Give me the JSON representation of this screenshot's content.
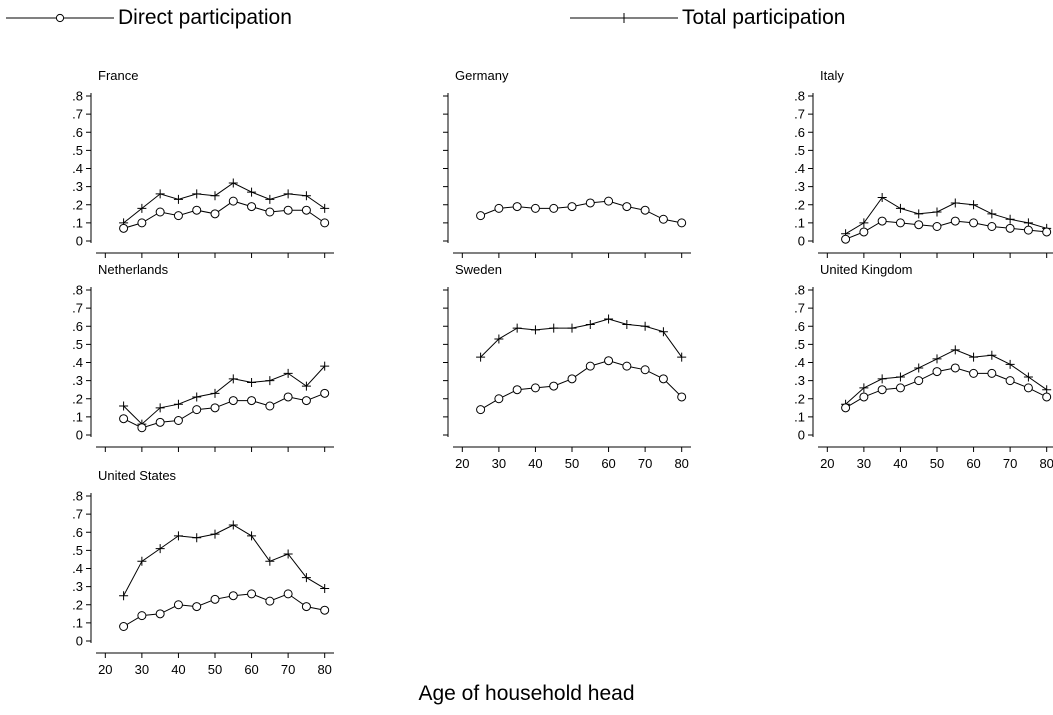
{
  "legend": {
    "direct_label": "Direct participation",
    "total_label": "Total participation"
  },
  "xlabel": "Age of household head",
  "chart_data": {
    "type": "line",
    "xlabel": "Age of household head",
    "x": [
      25,
      30,
      35,
      40,
      45,
      50,
      55,
      60,
      65,
      70,
      75,
      80
    ],
    "xticks": [
      20,
      30,
      40,
      50,
      60,
      70,
      80
    ],
    "xlim": [
      18,
      82
    ],
    "ylim": [
      0,
      0.8
    ],
    "yticks": [
      0,
      0.1,
      0.2,
      0.3,
      0.4,
      0.5,
      0.6,
      0.7,
      0.8
    ],
    "ytick_labels": [
      "0",
      ".1",
      ".2",
      ".3",
      ".4",
      ".5",
      ".6",
      ".7",
      ".8"
    ],
    "grid": false,
    "legend_position": "top",
    "series_names": [
      "Direct participation",
      "Total participation"
    ],
    "panels": [
      {
        "title": "France",
        "direct": [
          0.07,
          0.1,
          0.16,
          0.14,
          0.17,
          0.15,
          0.22,
          0.19,
          0.16,
          0.17,
          0.17,
          0.1
        ],
        "total": [
          0.1,
          0.18,
          0.26,
          0.23,
          0.26,
          0.25,
          0.32,
          0.27,
          0.23,
          0.26,
          0.25,
          0.18
        ]
      },
      {
        "title": "Germany",
        "direct": [
          0.14,
          0.18,
          0.19,
          0.18,
          0.18,
          0.19,
          0.21,
          0.22,
          0.19,
          0.17,
          0.12,
          0.1
        ],
        "total": null
      },
      {
        "title": "Italy",
        "direct": [
          0.01,
          0.05,
          0.11,
          0.1,
          0.09,
          0.08,
          0.11,
          0.1,
          0.08,
          0.07,
          0.06,
          0.05
        ],
        "total": [
          0.04,
          0.1,
          0.24,
          0.18,
          0.15,
          0.16,
          0.21,
          0.2,
          0.15,
          0.12,
          0.1,
          0.07
        ]
      },
      {
        "title": "Netherlands",
        "direct": [
          0.09,
          0.04,
          0.07,
          0.08,
          0.14,
          0.15,
          0.19,
          0.19,
          0.16,
          0.21,
          0.19,
          0.23
        ],
        "total": [
          0.16,
          0.06,
          0.15,
          0.17,
          0.21,
          0.23,
          0.31,
          0.29,
          0.3,
          0.34,
          0.27,
          0.38
        ]
      },
      {
        "title": "Sweden",
        "direct": [
          0.14,
          0.2,
          0.25,
          0.26,
          0.27,
          0.31,
          0.38,
          0.41,
          0.38,
          0.36,
          0.31,
          0.21
        ],
        "total": [
          0.43,
          0.53,
          0.59,
          0.58,
          0.59,
          0.59,
          0.61,
          0.64,
          0.61,
          0.6,
          0.57,
          0.43
        ]
      },
      {
        "title": "United Kingdom",
        "direct": [
          0.15,
          0.21,
          0.25,
          0.26,
          0.3,
          0.35,
          0.37,
          0.34,
          0.34,
          0.3,
          0.26,
          0.21
        ],
        "total": [
          0.17,
          0.26,
          0.31,
          0.32,
          0.37,
          0.42,
          0.47,
          0.43,
          0.44,
          0.39,
          0.32,
          0.25
        ]
      },
      {
        "title": "United States",
        "direct": [
          0.08,
          0.14,
          0.15,
          0.2,
          0.19,
          0.23,
          0.25,
          0.26,
          0.22,
          0.26,
          0.19,
          0.17
        ],
        "total": [
          0.25,
          0.44,
          0.51,
          0.58,
          0.57,
          0.59,
          0.64,
          0.58,
          0.44,
          0.48,
          0.35,
          0.29
        ]
      }
    ]
  }
}
